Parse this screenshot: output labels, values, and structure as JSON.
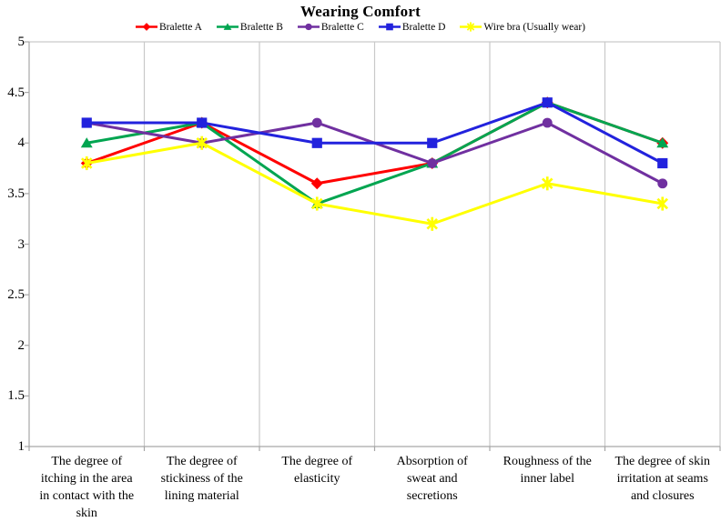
{
  "chart_data": {
    "type": "line",
    "title": "Wearing Comfort",
    "categories": [
      "The degree of itching in the area in contact with the skin",
      "The degree of stickiness of the lining material",
      "The degree of elasticity",
      "Absorption of sweat and secretions",
      "Roughness of the inner label",
      "The degree of skin irritation at seams and closures"
    ],
    "categories_wrapped": [
      [
        "The degree of",
        "itching in the area",
        "in contact with the",
        "skin"
      ],
      [
        "The degree of",
        "stickiness of the",
        "lining material"
      ],
      [
        "The degree of",
        "elasticity"
      ],
      [
        "Absorption of",
        "sweat and",
        "secretions"
      ],
      [
        "Roughness of the",
        "inner label"
      ],
      [
        "The degree of skin",
        "irritation at seams",
        "and closures"
      ]
    ],
    "series": [
      {
        "name": "Bralette A",
        "color": "#FF0000",
        "marker": "diamond",
        "values": [
          3.8,
          4.2,
          3.6,
          3.8,
          4.4,
          4.0
        ]
      },
      {
        "name": "Bralette B",
        "color": "#00A550",
        "marker": "triangle",
        "values": [
          4.0,
          4.2,
          3.4,
          3.8,
          4.4,
          4.0
        ]
      },
      {
        "name": "Bralette C",
        "color": "#7030A0",
        "marker": "circle",
        "values": [
          4.2,
          4.0,
          4.2,
          3.8,
          4.2,
          3.6
        ]
      },
      {
        "name": "Bralette D",
        "color": "#2222DD",
        "marker": "square",
        "values": [
          4.2,
          4.2,
          4.0,
          4.0,
          4.4,
          3.8
        ]
      },
      {
        "name": "Wire bra (Usually wear)",
        "color": "#FFFF00",
        "marker": "star",
        "values": [
          3.8,
          4.0,
          3.4,
          3.2,
          3.6,
          3.4
        ]
      }
    ],
    "ylim": [
      1,
      5
    ],
    "ytick_step": 0.5,
    "ytick_labels": [
      "5",
      "4.5",
      "4",
      "3.5",
      "3",
      "2.5",
      "2",
      "1.5",
      "1"
    ],
    "grid": "vertical-only",
    "legend_position": "top",
    "colors": {
      "axis": "#A6A6A6",
      "grid": "#C9C9C9",
      "text": "#000000",
      "background": "#FFFFFF"
    }
  }
}
